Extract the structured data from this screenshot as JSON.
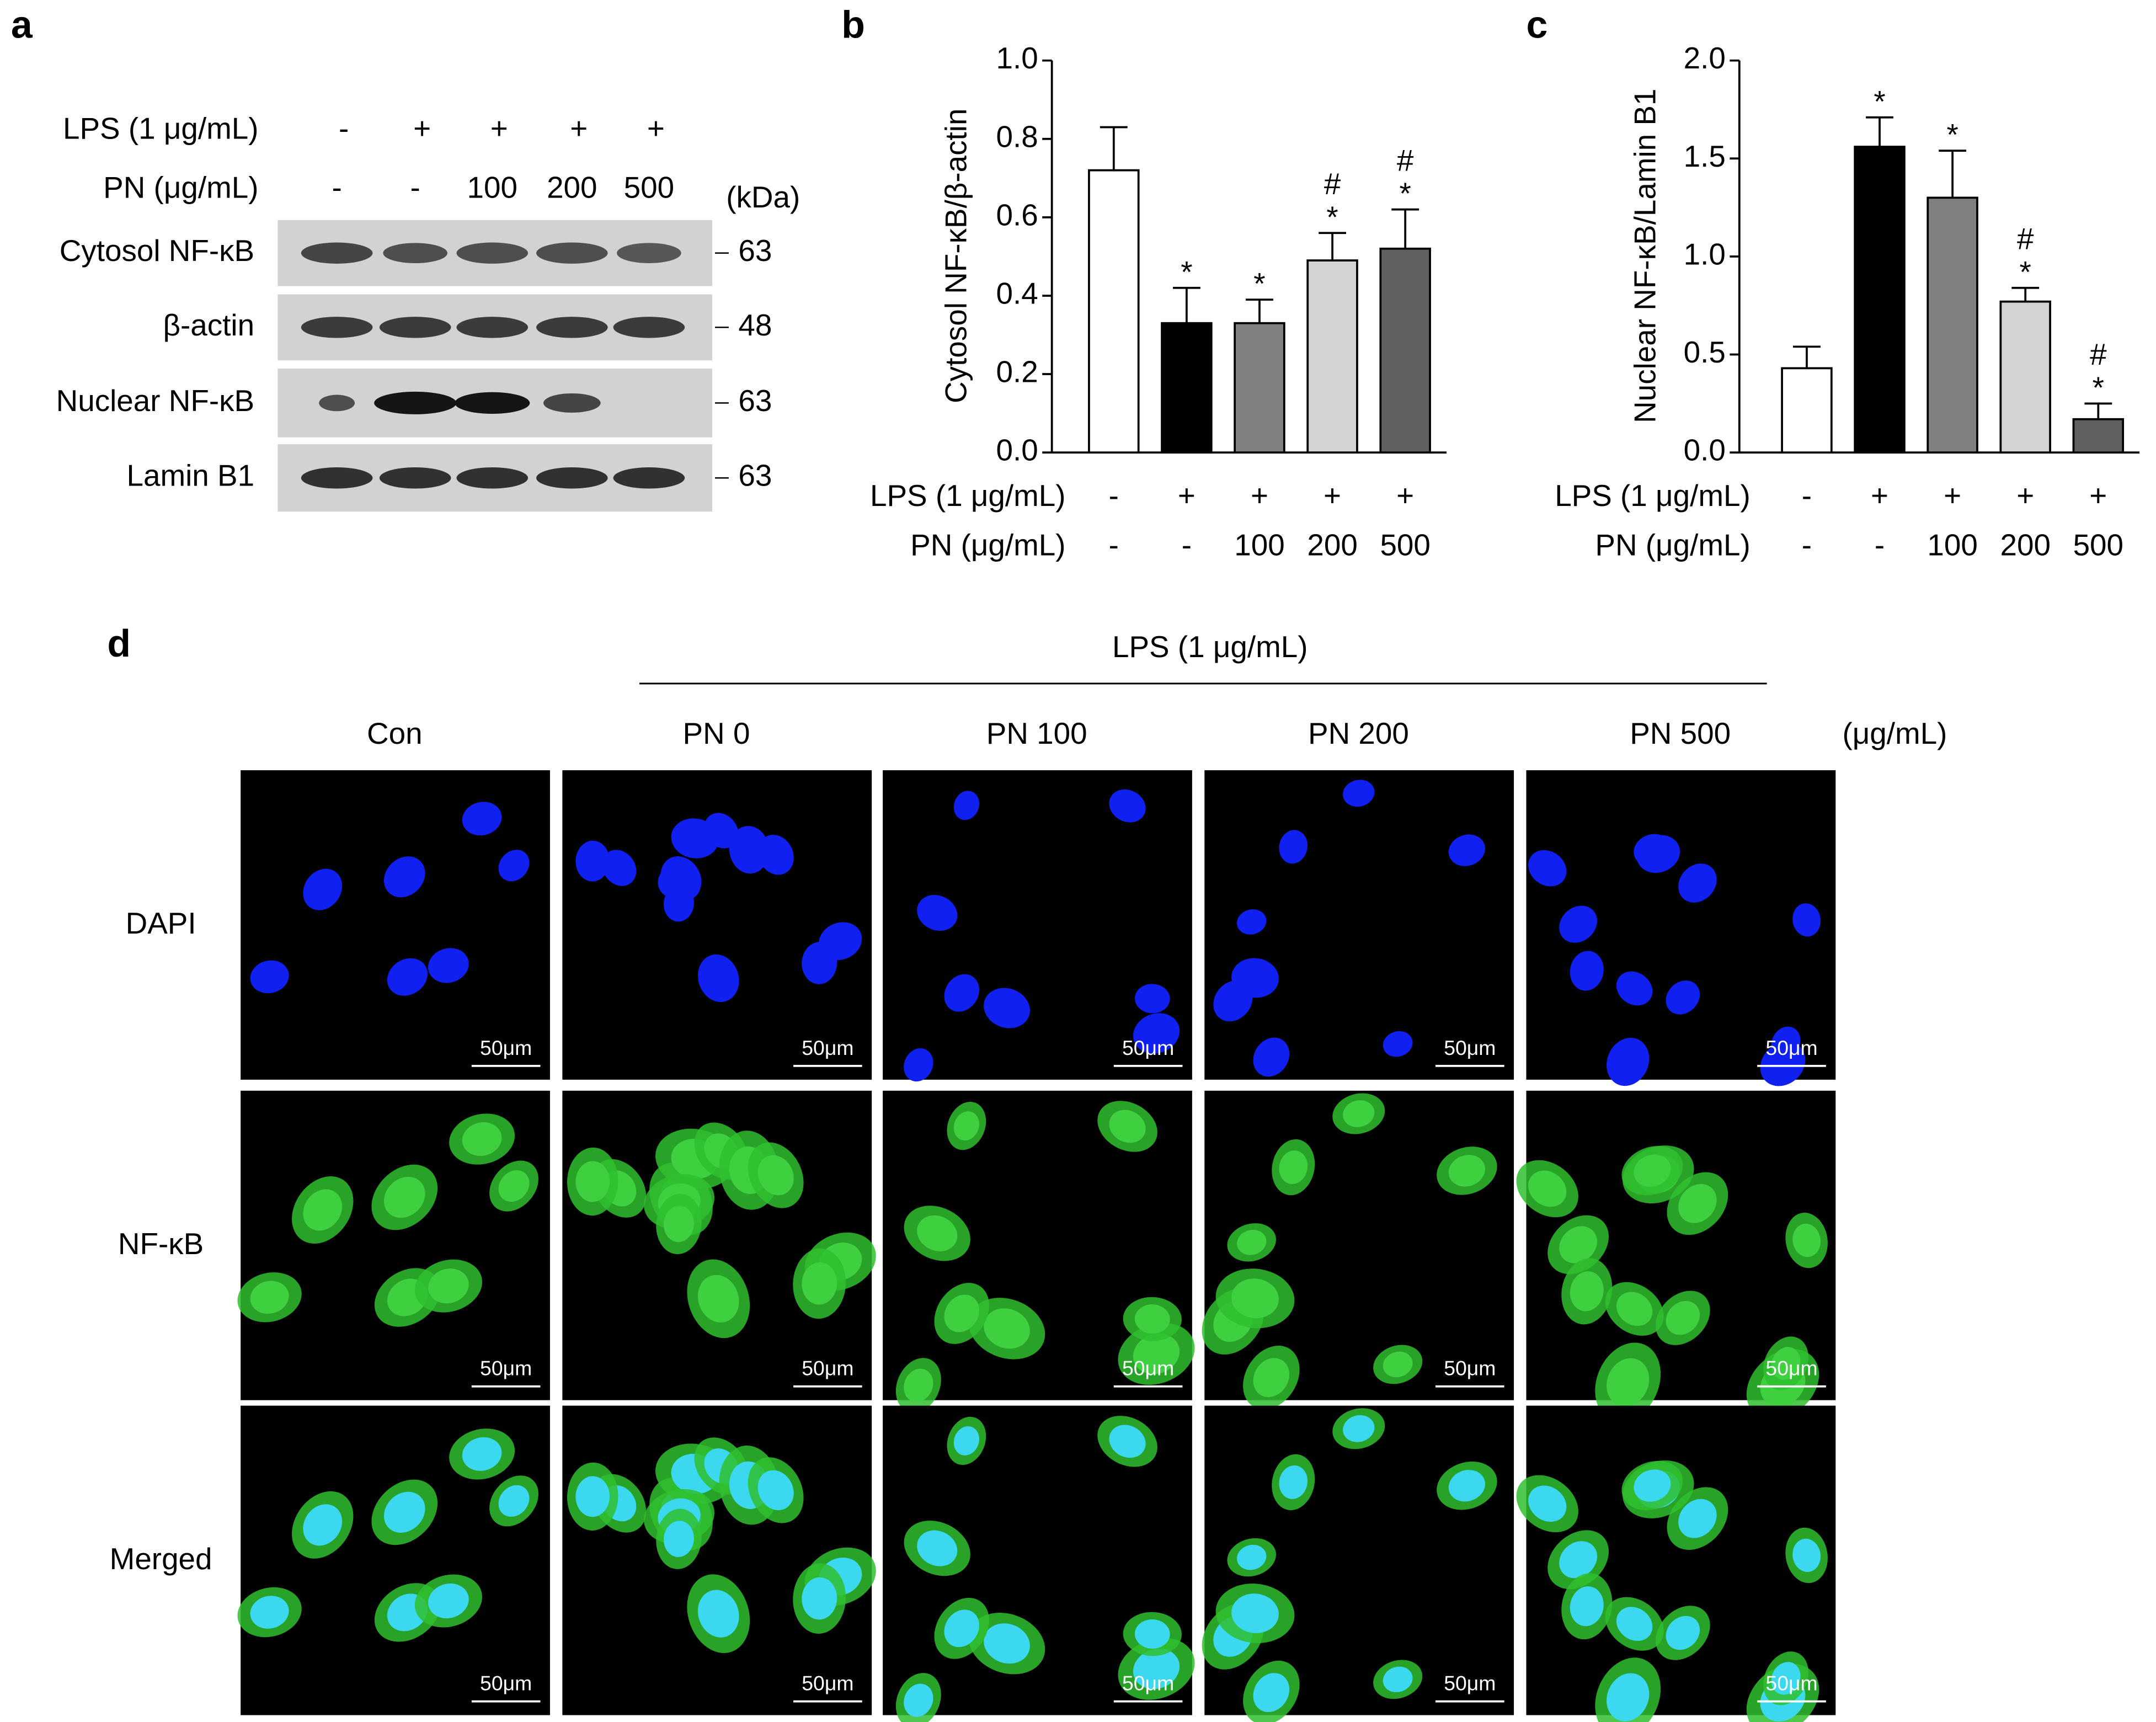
{
  "panel_a": {
    "label": "a",
    "conditions": [
      {
        "label": "LPS (1 μg/mL)",
        "values": [
          "-",
          "+",
          "+",
          "+",
          "+"
        ]
      },
      {
        "label": "PN (μg/mL)",
        "values": [
          "-",
          "-",
          "100",
          "200",
          "500"
        ]
      }
    ],
    "unit_header": "(kDa)",
    "blots": [
      {
        "label": "Cytosol NF-κB",
        "kda": 63
      },
      {
        "label": "β-actin",
        "kda": 48
      },
      {
        "label": "Nuclear NF-κB",
        "kda": 63
      },
      {
        "label": "Lamin B1",
        "kda": 63
      }
    ]
  },
  "chart_data": [
    {
      "type": "bar",
      "panel_label": "b",
      "y_label": "Cytosol NF-κB/β-actin",
      "categories": [
        null,
        null,
        null,
        null,
        null
      ],
      "values": [
        0.72,
        0.33,
        0.33,
        0.49,
        0.52
      ],
      "errors": [
        0.11,
        0.09,
        0.06,
        0.07,
        0.1
      ],
      "colors": [
        "#ffffff",
        "#000000",
        "#808080",
        "#d3d3d3",
        "#606060"
      ],
      "significance": [
        null,
        "*",
        "*",
        "*",
        "*"
      ],
      "significance_vs_lps": [
        null,
        null,
        null,
        "#",
        "#"
      ],
      "ylim": [
        0,
        1.0
      ],
      "yticks": [
        {
          "value": 0,
          "label": "0.0"
        },
        0.2,
        0.4,
        0.6,
        0.8,
        {
          "value": 1.0,
          "label": "1.0"
        }
      ],
      "conditions": [
        {
          "label": "LPS (1 μg/mL)",
          "values": [
            "-",
            "+",
            "+",
            "+",
            "+"
          ]
        },
        {
          "label": "PN (μg/mL)",
          "values": [
            "-",
            "-",
            "100",
            "200",
            "500"
          ]
        }
      ]
    },
    {
      "type": "bar",
      "panel_label": "c",
      "y_label": "Nuclear NF-κB/Lamin B1",
      "categories": [
        null,
        null,
        null,
        null,
        null
      ],
      "values": [
        0.43,
        1.56,
        1.3,
        0.77,
        0.17
      ],
      "errors": [
        0.11,
        0.15,
        0.24,
        0.07,
        0.08
      ],
      "colors": [
        "#ffffff",
        "#000000",
        "#808080",
        "#d3d3d3",
        "#606060"
      ],
      "significance": [
        null,
        "*",
        "*",
        "*",
        "*"
      ],
      "significance_vs_lps": [
        null,
        null,
        null,
        "#",
        "#"
      ],
      "ylim": [
        0,
        2.0
      ],
      "yticks": [
        {
          "value": 0,
          "label": "0.0"
        },
        0.5,
        {
          "value": 1.0,
          "label": "1.0"
        },
        1.5,
        {
          "value": 2.0,
          "label": "2.0"
        }
      ],
      "conditions": [
        {
          "label": "LPS (1 μg/mL)",
          "values": [
            "-",
            "+",
            "+",
            "+",
            "+"
          ]
        },
        {
          "label": "PN (μg/mL)",
          "values": [
            "-",
            "-",
            "100",
            "200",
            "500"
          ]
        }
      ]
    }
  ],
  "panel_d": {
    "label": "d",
    "treatment": "LPS (1 μg/mL)",
    "columns": [
      "Con",
      "PN 0",
      "PN 100",
      "PN 200",
      "PN 500"
    ],
    "unit": "(μg/mL)",
    "rows": [
      "DAPI",
      "NF-κB",
      "Merged"
    ],
    "scale_bar": "50μm"
  }
}
